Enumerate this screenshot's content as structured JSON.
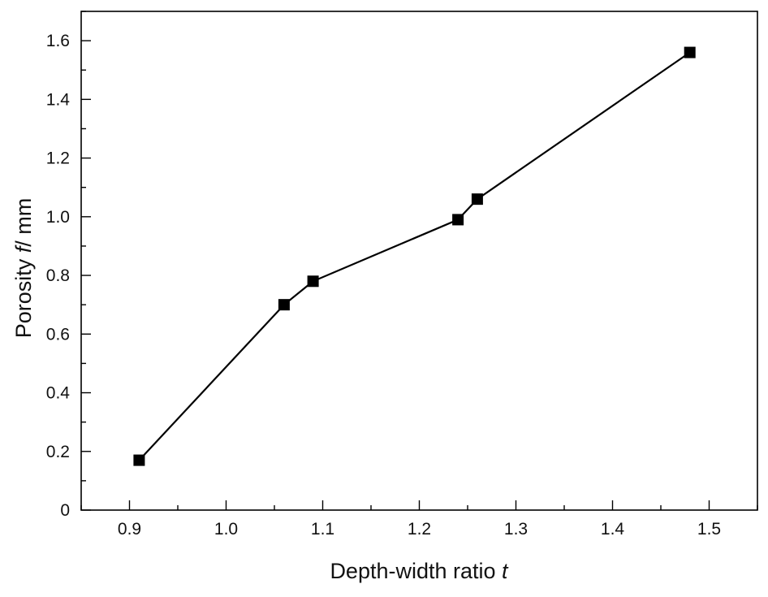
{
  "chart_data": {
    "type": "line",
    "xlabel": "Depth-width ratio t",
    "ylabel": "Porosity f/ mm",
    "xlim": [
      0.85,
      1.55
    ],
    "ylim": [
      0,
      1.7
    ],
    "x_ticks": [
      "0.9",
      "1.0",
      "1.1",
      "1.2",
      "1.3",
      "1.4",
      "1.5"
    ],
    "y_ticks": [
      "0",
      "0.2",
      "0.4",
      "0.6",
      "0.8",
      "1.0",
      "1.2",
      "1.4",
      "1.6"
    ],
    "grid": false,
    "legend": "none",
    "marker": "square",
    "colors": {
      "line": "#000000",
      "marker": "#000000",
      "axis": "#000000"
    },
    "series": [
      {
        "x": [
          0.91,
          1.06,
          1.09,
          1.24,
          1.26,
          1.48
        ],
        "y": [
          0.17,
          0.7,
          0.78,
          0.99,
          1.06,
          1.56
        ]
      }
    ]
  }
}
